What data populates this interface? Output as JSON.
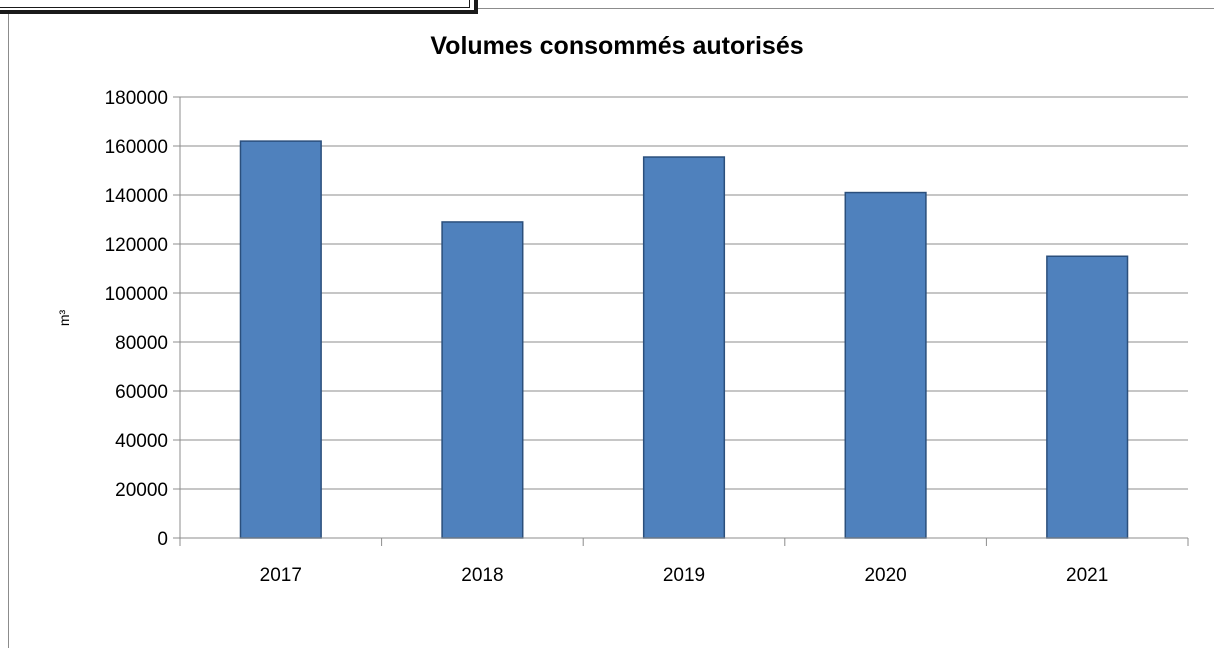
{
  "chart_data": {
    "type": "bar",
    "title": "Volumes consommés autorisés",
    "ylabel": "m³",
    "xlabel": "",
    "categories": [
      "2017",
      "2018",
      "2019",
      "2020",
      "2021"
    ],
    "values": [
      162000,
      129000,
      155500,
      141000,
      115000
    ],
    "ylim": [
      0,
      180000
    ],
    "ytick_step": 20000,
    "grid": true,
    "legend": "none",
    "colors": {
      "bar_fill": "#4f81bd",
      "bar_stroke": "#2b4f7c",
      "grid": "#8c8c8c",
      "axis": "#8c8c8c"
    }
  }
}
